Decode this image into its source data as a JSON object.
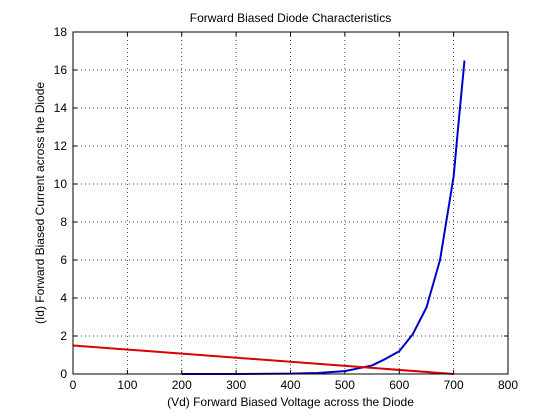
{
  "chart_data": {
    "type": "line",
    "title": "Forward Biased Diode Characteristics",
    "xlabel": "(Vd) Forward Biased Voltage across the Diode",
    "ylabel": "(Id) Forward Biased Current across the Diode",
    "xlim": [
      0,
      800
    ],
    "ylim": [
      0,
      18
    ],
    "xticks": [
      0,
      100,
      200,
      300,
      400,
      500,
      600,
      700,
      800
    ],
    "yticks": [
      0,
      2,
      4,
      6,
      8,
      10,
      12,
      14,
      16,
      18
    ],
    "grid": true,
    "legend": "none",
    "series": [
      {
        "color": "#0000cc",
        "x": [
          200,
          300,
          400,
          450,
          500,
          525,
          550,
          575,
          600,
          625,
          650,
          675,
          700,
          710,
          720
        ],
        "y": [
          0,
          0,
          0.02,
          0.05,
          0.15,
          0.3,
          0.45,
          0.8,
          1.2,
          2.1,
          3.5,
          6.0,
          10.4,
          13.5,
          16.5
        ]
      },
      {
        "color": "#dd0000",
        "x": [
          0,
          700
        ],
        "y": [
          1.5,
          0
        ]
      }
    ]
  }
}
